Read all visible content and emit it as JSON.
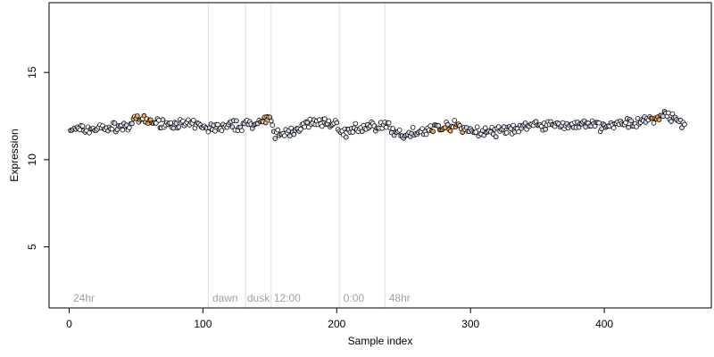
{
  "chart_data": {
    "type": "scatter",
    "title": "",
    "xlabel": "Sample index",
    "ylabel": "Expression",
    "xlim": [
      -15,
      480
    ],
    "ylim": [
      1.5,
      19.0
    ],
    "x_ticks": [
      0,
      100,
      200,
      300,
      400
    ],
    "y_ticks": [
      5,
      10,
      15
    ],
    "grid": false,
    "legend": "none",
    "colors": {
      "point_stroke": "#000000",
      "light_blue_fill": "#cfd8ee",
      "orange_fill": "#f5a94c",
      "divider": "#dddddd",
      "region_text": "#a0a0a0"
    },
    "dividers": [
      104,
      132,
      151,
      202,
      236
    ],
    "regions": [
      {
        "label": "24hr",
        "x": 3
      },
      {
        "label": "dawn",
        "x": 107
      },
      {
        "label": "dusk",
        "x": 133
      },
      {
        "label": "12:00",
        "x": 153
      },
      {
        "label": "0:00",
        "x": 205
      },
      {
        "label": "48hr",
        "x": 239
      }
    ],
    "series_profile": {
      "x_range": [
        1,
        460
      ],
      "trend_x": [
        0,
        20,
        45,
        50,
        70,
        95,
        104,
        120,
        132,
        145,
        151,
        153,
        165,
        180,
        200,
        205,
        220,
        236,
        245,
        255,
        270,
        290,
        300,
        320,
        350,
        380,
        400,
        420,
        445,
        460
      ],
      "trend_y": [
        11.7,
        11.8,
        11.9,
        12.3,
        12.1,
        12.0,
        11.8,
        11.9,
        12.0,
        12.2,
        12.2,
        11.4,
        11.6,
        12.1,
        12.1,
        11.5,
        11.9,
        12.0,
        11.4,
        11.5,
        11.8,
        12.0,
        11.6,
        11.6,
        12.0,
        12.0,
        11.9,
        12.1,
        12.5,
        12.1
      ],
      "noise": 0.22,
      "orange_segments": [
        [
          48,
          68
        ],
        [
          143,
          152
        ],
        [
          195,
          200
        ],
        [
          270,
          295
        ],
        [
          435,
          445
        ]
      ]
    }
  }
}
